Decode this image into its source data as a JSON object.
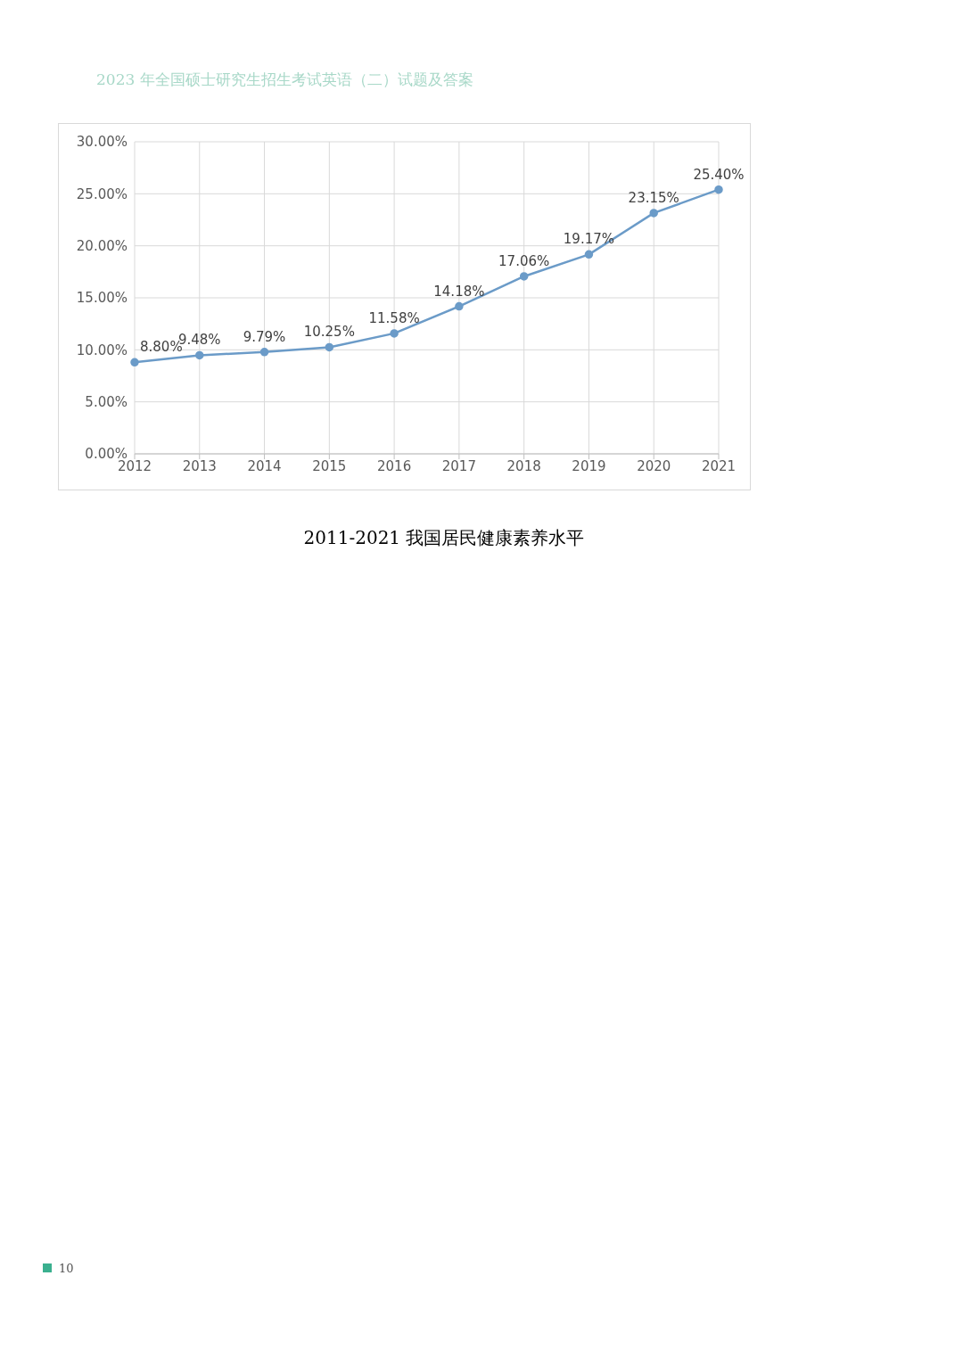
{
  "chart_data": {
    "type": "line",
    "title": "2011-2021 我国居民健康素养水平",
    "annotations": [
      "2023 年全国硕士研究生招生考试英语（二）试题及答案",
      "10"
    ],
    "categories": [
      "2012",
      "2013",
      "2014",
      "2015",
      "2016",
      "2017",
      "2018",
      "2019",
      "2020",
      "2021"
    ],
    "series": [
      {
        "color": "#6b9bc8",
        "values": [
          8.8,
          9.48,
          9.79,
          10.25,
          11.58,
          14.18,
          17.06,
          19.17,
          23.15,
          25.4
        ],
        "value_labels": [
          "8.80%",
          "9.48%",
          "9.79%",
          "10.25%",
          "11.58%",
          "14.18%",
          "17.06%",
          "19.17%",
          "23.15%",
          "25.40%"
        ]
      }
    ],
    "ylim": [
      0,
      30
    ],
    "yticks": [
      {
        "value": 0,
        "label": "0.00%"
      },
      {
        "value": 5,
        "label": "5.00%"
      },
      {
        "value": 10,
        "label": "10.00%"
      },
      {
        "value": 15,
        "label": "15.00%"
      },
      {
        "value": 20,
        "label": "20.00%"
      },
      {
        "value": 25,
        "label": "25.00%"
      },
      {
        "value": 30,
        "label": "30.00%"
      }
    ],
    "grid": true,
    "marker": "circle",
    "line_style": "solid",
    "legend": false
  }
}
